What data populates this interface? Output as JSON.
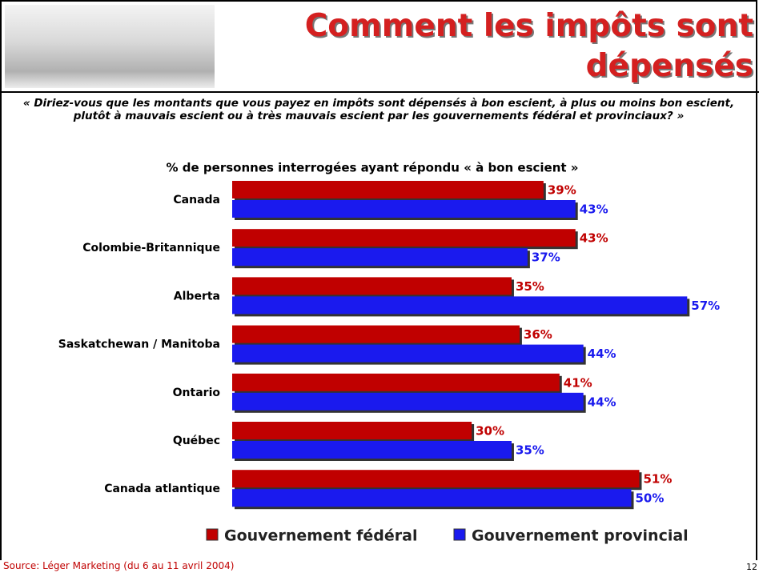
{
  "header": {
    "title": "Comment les impôts sont\ndépensés",
    "question": "« Diriez-vous que les montants que vous payez en impôts sont dépensés à bon escient, à plus ou moins bon escient, plutôt à mauvais escient ou à très mauvais escient par les gouvernements fédéral et provinciaux? »"
  },
  "chart_data": {
    "type": "bar",
    "orientation": "horizontal",
    "title": "% de personnes interrogées ayant répondu « à bon escient »",
    "categories": [
      "Canada",
      "Colombie-Britannique",
      "Alberta",
      "Saskatchewan / Manitoba",
      "Ontario",
      "Québec",
      "Canada atlantique"
    ],
    "series": [
      {
        "name": "Gouvernement fédéral",
        "color": "#c00000",
        "label_color": "#c00000",
        "values": [
          39,
          43,
          35,
          36,
          41,
          30,
          51
        ],
        "value_labels": [
          "39%",
          "43%",
          "35%",
          "36%",
          "41%",
          "30%",
          "51%"
        ]
      },
      {
        "name": "Gouvernement provincial",
        "color": "#1a1aee",
        "label_color": "#1a1aee",
        "values": [
          43,
          37,
          57,
          44,
          44,
          35,
          50
        ],
        "value_labels": [
          "43%",
          "37%",
          "57%",
          "44%",
          "44%",
          "35%",
          "50%"
        ]
      }
    ]
  },
  "footer": {
    "source": "Source: Léger Marketing (du 6 au 11 avril 2004)",
    "page": "12"
  }
}
